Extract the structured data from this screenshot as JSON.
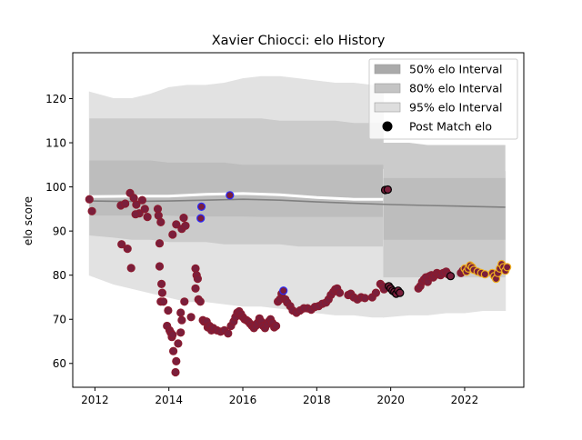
{
  "chart_data": {
    "type": "scatter",
    "title": "Xavier Chiocci: elo History",
    "xlabel": "",
    "ylabel": "elo score",
    "xlim": [
      2011.4,
      2023.6
    ],
    "ylim": [
      54.6,
      130.4
    ],
    "x_ticks": [
      2012,
      2014,
      2016,
      2018,
      2020,
      2022
    ],
    "x_tick_labels": [
      "2012",
      "2014",
      "2016",
      "2018",
      "2020",
      "2022"
    ],
    "y_ticks": [
      60,
      70,
      80,
      90,
      100,
      110,
      120
    ],
    "y_tick_labels": [
      "60",
      "70",
      "80",
      "90",
      "100",
      "110",
      "120"
    ],
    "legend": {
      "position": "top-right",
      "entries": [
        {
          "label": "50% elo Interval",
          "kind": "patch",
          "color": "#aaaaaa"
        },
        {
          "label": "80% elo Interval",
          "kind": "patch",
          "color": "#c4c4c4"
        },
        {
          "label": "95% elo Interval",
          "kind": "patch",
          "color": "#dedede"
        },
        {
          "label": "Post Match elo",
          "kind": "marker",
          "color": "#000000"
        }
      ]
    },
    "colors": {
      "band50": "#bdbdbd",
      "band80": "#cbcbcb",
      "band95": "#e2e2e2",
      "median_line": "#808080",
      "white_line": "#ffffff",
      "point_fill": "#7a1f3c",
      "point_edge": "#8b1a2e",
      "point_edge_blue": "#2a2aff",
      "point_edge_gold": "#f0b020",
      "point_edge_black": "#000000"
    },
    "band_segments": [
      {
        "name": "old",
        "x": [
          2011.85,
          2012.5,
          2013.0,
          2013.5,
          2014.0,
          2014.5,
          2015.0,
          2015.5,
          2016.0,
          2016.5,
          2017.0,
          2017.5,
          2018.0,
          2018.5,
          2019.0,
          2019.5,
          2019.8
        ],
        "p95_low": [
          80,
          78,
          77,
          76,
          75,
          74,
          74,
          73.5,
          73,
          73,
          72.5,
          72,
          71.5,
          71,
          71,
          70.5,
          70.5
        ],
        "p80_low": [
          89,
          88.5,
          88,
          88,
          87.5,
          87.5,
          87.5,
          87,
          87,
          87,
          87,
          86.5,
          86.5,
          86.5,
          86.5,
          86.5,
          86.5
        ],
        "p50_low": [
          93.5,
          93.5,
          93.5,
          93.5,
          93.5,
          93.3,
          93.3,
          93.3,
          93.3,
          93.2,
          93.2,
          93.2,
          93.2,
          93.2,
          93.2,
          93.2,
          93.2
        ],
        "p50_high": [
          106,
          106,
          106,
          106,
          105.5,
          105.5,
          105.5,
          105.5,
          105,
          105,
          105,
          105,
          105,
          105,
          105,
          105,
          105
        ],
        "p80_high": [
          115.5,
          115.5,
          115.5,
          115.5,
          115.5,
          115.5,
          115.5,
          115.5,
          115.5,
          115.5,
          115,
          115,
          115,
          115,
          114.5,
          114.5,
          114.5
        ],
        "p95_high": [
          121.5,
          120,
          120,
          121,
          122.5,
          123,
          123,
          123.5,
          124.5,
          125,
          125,
          124.5,
          124,
          123.5,
          123.5,
          123,
          123
        ]
      },
      {
        "name": "new",
        "x": [
          2019.8,
          2020.5,
          2021.0,
          2021.5,
          2022.0,
          2022.5,
          2023.1
        ],
        "p95_low": [
          70.5,
          71,
          71,
          71.5,
          71.5,
          72,
          72
        ],
        "p80_low": [
          79.5,
          79.5,
          79.5,
          79.5,
          79.5,
          79.5,
          79.5
        ],
        "p50_low": [
          88,
          88,
          88,
          88,
          88,
          88,
          88
        ],
        "p50_high": [
          102,
          102,
          102,
          102,
          102,
          102,
          102
        ],
        "p80_high": [
          110,
          110,
          109.5,
          109.5,
          109.5,
          109.5,
          109.5
        ],
        "p95_high": [
          104,
          104,
          104,
          104,
          103.5,
          103.5,
          103.5
        ]
      }
    ],
    "median_line": {
      "x": [
        2011.85,
        2013.0,
        2014.0,
        2015.0,
        2016.0,
        2017.0,
        2018.0,
        2019.0,
        2020.0,
        2021.0,
        2022.0,
        2023.1
      ],
      "y": [
        96.8,
        96.7,
        96.8,
        97.0,
        97.2,
        97.0,
        96.6,
        96.3,
        96.0,
        95.8,
        95.6,
        95.4
      ]
    },
    "white_line": {
      "x": [
        2011.85,
        2013.0,
        2014.0,
        2015.0,
        2016.0,
        2017.0,
        2018.0,
        2019.0,
        2019.8
      ],
      "y": [
        97.8,
        97.9,
        97.9,
        98.3,
        98.5,
        98.2,
        97.6,
        97.2,
        97.2
      ]
    },
    "series": [
      {
        "name": "Post Match elo",
        "points": [
          [
            2011.85,
            97.2,
            "red"
          ],
          [
            2011.92,
            94.5,
            "red"
          ],
          [
            2012.7,
            95.8,
            "red"
          ],
          [
            2012.82,
            96.2,
            "red"
          ],
          [
            2012.95,
            98.6,
            "red"
          ],
          [
            2013.05,
            97.5,
            "red"
          ],
          [
            2013.12,
            96.0,
            "red"
          ],
          [
            2013.2,
            94.0,
            "red"
          ],
          [
            2013.28,
            97.0,
            "red"
          ],
          [
            2013.35,
            95.0,
            "red"
          ],
          [
            2013.42,
            93.2,
            "red"
          ],
          [
            2013.1,
            93.8,
            "red"
          ],
          [
            2012.72,
            87.0,
            "red"
          ],
          [
            2012.88,
            86.0,
            "red"
          ],
          [
            2012.98,
            81.6,
            "red"
          ],
          [
            2013.7,
            95.0,
            "red"
          ],
          [
            2013.72,
            93.5,
            "red"
          ],
          [
            2013.78,
            92.0,
            "red"
          ],
          [
            2013.75,
            87.2,
            "red"
          ],
          [
            2013.75,
            82.0,
            "red"
          ],
          [
            2013.8,
            78.0,
            "red"
          ],
          [
            2013.82,
            76.0,
            "red"
          ],
          [
            2013.78,
            74.0,
            "red"
          ],
          [
            2013.85,
            74.0,
            "red"
          ],
          [
            2013.98,
            72.0,
            "red"
          ],
          [
            2013.95,
            68.5,
            "red"
          ],
          [
            2014.02,
            67.5,
            "red"
          ],
          [
            2014.05,
            67.0,
            "red"
          ],
          [
            2014.08,
            66.0,
            "red"
          ],
          [
            2014.1,
            66.5,
            "red"
          ],
          [
            2014.12,
            62.8,
            "red"
          ],
          [
            2014.18,
            58.0,
            "red"
          ],
          [
            2014.2,
            60.5,
            "red"
          ],
          [
            2014.25,
            64.5,
            "red"
          ],
          [
            2014.32,
            67.0,
            "red"
          ],
          [
            2014.35,
            69.8,
            "red"
          ],
          [
            2014.42,
            74.0,
            "red"
          ],
          [
            2014.32,
            71.5,
            "red"
          ],
          [
            2014.1,
            89.2,
            "red"
          ],
          [
            2014.2,
            91.5,
            "red"
          ],
          [
            2014.35,
            90.5,
            "red"
          ],
          [
            2014.4,
            93.0,
            "red"
          ],
          [
            2014.45,
            91.2,
            "red"
          ],
          [
            2014.6,
            70.5,
            "red"
          ],
          [
            2014.72,
            81.5,
            "red"
          ],
          [
            2014.75,
            80.0,
            "red"
          ],
          [
            2014.78,
            79.2,
            "red"
          ],
          [
            2014.72,
            77.0,
            "red"
          ],
          [
            2014.8,
            74.5,
            "red"
          ],
          [
            2014.85,
            74.0,
            "red"
          ],
          [
            2014.88,
            95.5,
            "blue"
          ],
          [
            2014.86,
            92.9,
            "blue"
          ],
          [
            2014.92,
            69.8,
            "red"
          ],
          [
            2014.95,
            69.5,
            "red"
          ],
          [
            2015.02,
            69.5,
            "red"
          ],
          [
            2015.05,
            68.2,
            "red"
          ],
          [
            2015.1,
            68.5,
            "red"
          ],
          [
            2015.15,
            67.5,
            "red"
          ],
          [
            2015.2,
            68.0,
            "red"
          ],
          [
            2015.3,
            67.5,
            "red"
          ],
          [
            2015.4,
            67.2,
            "red"
          ],
          [
            2015.5,
            67.5,
            "red"
          ],
          [
            2015.6,
            66.8,
            "red"
          ],
          [
            2015.65,
            98.1,
            "blue"
          ],
          [
            2015.68,
            68.5,
            "red"
          ],
          [
            2015.75,
            69.5,
            "red"
          ],
          [
            2015.8,
            70.5,
            "red"
          ],
          [
            2015.85,
            71.5,
            "red"
          ],
          [
            2015.9,
            71.8,
            "red"
          ],
          [
            2015.95,
            71.2,
            "red"
          ],
          [
            2016.0,
            70.5,
            "red"
          ],
          [
            2016.05,
            70.0,
            "red"
          ],
          [
            2016.1,
            69.8,
            "red"
          ],
          [
            2016.15,
            69.5,
            "red"
          ],
          [
            2016.2,
            69.0,
            "red"
          ],
          [
            2016.25,
            68.5,
            "red"
          ],
          [
            2016.3,
            68.0,
            "red"
          ],
          [
            2016.35,
            68.5,
            "red"
          ],
          [
            2016.4,
            69.2,
            "red"
          ],
          [
            2016.45,
            70.2,
            "red"
          ],
          [
            2016.5,
            69.5,
            "red"
          ],
          [
            2016.55,
            68.5,
            "red"
          ],
          [
            2016.6,
            68.0,
            "red"
          ],
          [
            2016.65,
            68.8,
            "red"
          ],
          [
            2016.7,
            69.5,
            "red"
          ],
          [
            2016.75,
            70.0,
            "red"
          ],
          [
            2016.8,
            69.2,
            "red"
          ],
          [
            2016.85,
            68.2,
            "red"
          ],
          [
            2016.9,
            68.5,
            "red"
          ],
          [
            2016.95,
            74.0,
            "red"
          ],
          [
            2017.0,
            74.5,
            "red"
          ],
          [
            2017.05,
            75.8,
            "red"
          ],
          [
            2017.1,
            76.5,
            "blue"
          ],
          [
            2017.15,
            74.5,
            "red"
          ],
          [
            2017.2,
            73.8,
            "red"
          ],
          [
            2017.28,
            73.0,
            "red"
          ],
          [
            2017.35,
            72.0,
            "red"
          ],
          [
            2017.45,
            71.5,
            "red"
          ],
          [
            2017.55,
            72.0,
            "red"
          ],
          [
            2017.65,
            72.5,
            "red"
          ],
          [
            2017.75,
            72.5,
            "red"
          ],
          [
            2017.85,
            72.2,
            "red"
          ],
          [
            2017.95,
            72.8,
            "red"
          ],
          [
            2018.05,
            73.0,
            "red"
          ],
          [
            2018.15,
            73.5,
            "red"
          ],
          [
            2018.25,
            73.8,
            "red"
          ],
          [
            2018.32,
            74.5,
            "red"
          ],
          [
            2018.38,
            75.5,
            "red"
          ],
          [
            2018.45,
            76.2,
            "red"
          ],
          [
            2018.5,
            76.8,
            "red"
          ],
          [
            2018.55,
            77.0,
            "red"
          ],
          [
            2018.62,
            76.0,
            "red"
          ],
          [
            2018.85,
            75.5,
            "red"
          ],
          [
            2018.92,
            75.8,
            "red"
          ],
          [
            2019.0,
            75.0,
            "red"
          ],
          [
            2019.1,
            74.5,
            "red"
          ],
          [
            2019.2,
            75.0,
            "red"
          ],
          [
            2019.3,
            74.8,
            "red"
          ],
          [
            2019.5,
            75.0,
            "red"
          ],
          [
            2019.6,
            76.0,
            "red"
          ],
          [
            2019.72,
            78.0,
            "red"
          ],
          [
            2019.78,
            77.5,
            "red"
          ],
          [
            2019.82,
            76.8,
            "red"
          ],
          [
            2019.85,
            99.3,
            "black"
          ],
          [
            2019.92,
            99.4,
            "black"
          ],
          [
            2019.95,
            77.5,
            "black"
          ],
          [
            2020.0,
            77.0,
            "black"
          ],
          [
            2020.05,
            76.5,
            "black"
          ],
          [
            2020.1,
            76.2,
            "black"
          ],
          [
            2020.15,
            75.8,
            "black"
          ],
          [
            2020.2,
            76.5,
            "black"
          ],
          [
            2020.25,
            76.0,
            "black"
          ],
          [
            2020.75,
            77.0,
            "red"
          ],
          [
            2020.8,
            77.5,
            "red"
          ],
          [
            2020.85,
            78.5,
            "red"
          ],
          [
            2020.9,
            79.0,
            "red"
          ],
          [
            2020.95,
            79.5,
            "red"
          ],
          [
            2021.0,
            78.5,
            "red"
          ],
          [
            2021.05,
            79.8,
            "red"
          ],
          [
            2021.1,
            80.0,
            "red"
          ],
          [
            2021.15,
            79.5,
            "red"
          ],
          [
            2021.2,
            80.0,
            "red"
          ],
          [
            2021.25,
            80.5,
            "red"
          ],
          [
            2021.3,
            80.2,
            "red"
          ],
          [
            2021.35,
            80.0,
            "red"
          ],
          [
            2021.42,
            80.5,
            "red"
          ],
          [
            2021.5,
            80.8,
            "red"
          ],
          [
            2021.55,
            80.2,
            "red"
          ],
          [
            2021.62,
            79.8,
            "black"
          ],
          [
            2021.9,
            80.5,
            "red"
          ],
          [
            2021.95,
            81.0,
            "red"
          ],
          [
            2022.0,
            81.5,
            "gold"
          ],
          [
            2022.05,
            80.8,
            "gold"
          ],
          [
            2022.1,
            81.5,
            "gold"
          ],
          [
            2022.15,
            82.2,
            "gold"
          ],
          [
            2022.2,
            81.8,
            "gold"
          ],
          [
            2022.25,
            81.2,
            "gold"
          ],
          [
            2022.35,
            80.8,
            "gold"
          ],
          [
            2022.45,
            80.5,
            "gold"
          ],
          [
            2022.55,
            80.2,
            "gold"
          ],
          [
            2022.75,
            80.5,
            "gold"
          ],
          [
            2022.8,
            79.8,
            "gold"
          ],
          [
            2022.85,
            79.2,
            "gold"
          ],
          [
            2022.9,
            80.5,
            "gold"
          ],
          [
            2022.95,
            81.5,
            "gold"
          ],
          [
            2023.0,
            82.5,
            "gold"
          ],
          [
            2023.05,
            81.8,
            "gold"
          ],
          [
            2023.1,
            81.0,
            "gold"
          ],
          [
            2023.15,
            81.8,
            "gold"
          ]
        ]
      }
    ]
  }
}
